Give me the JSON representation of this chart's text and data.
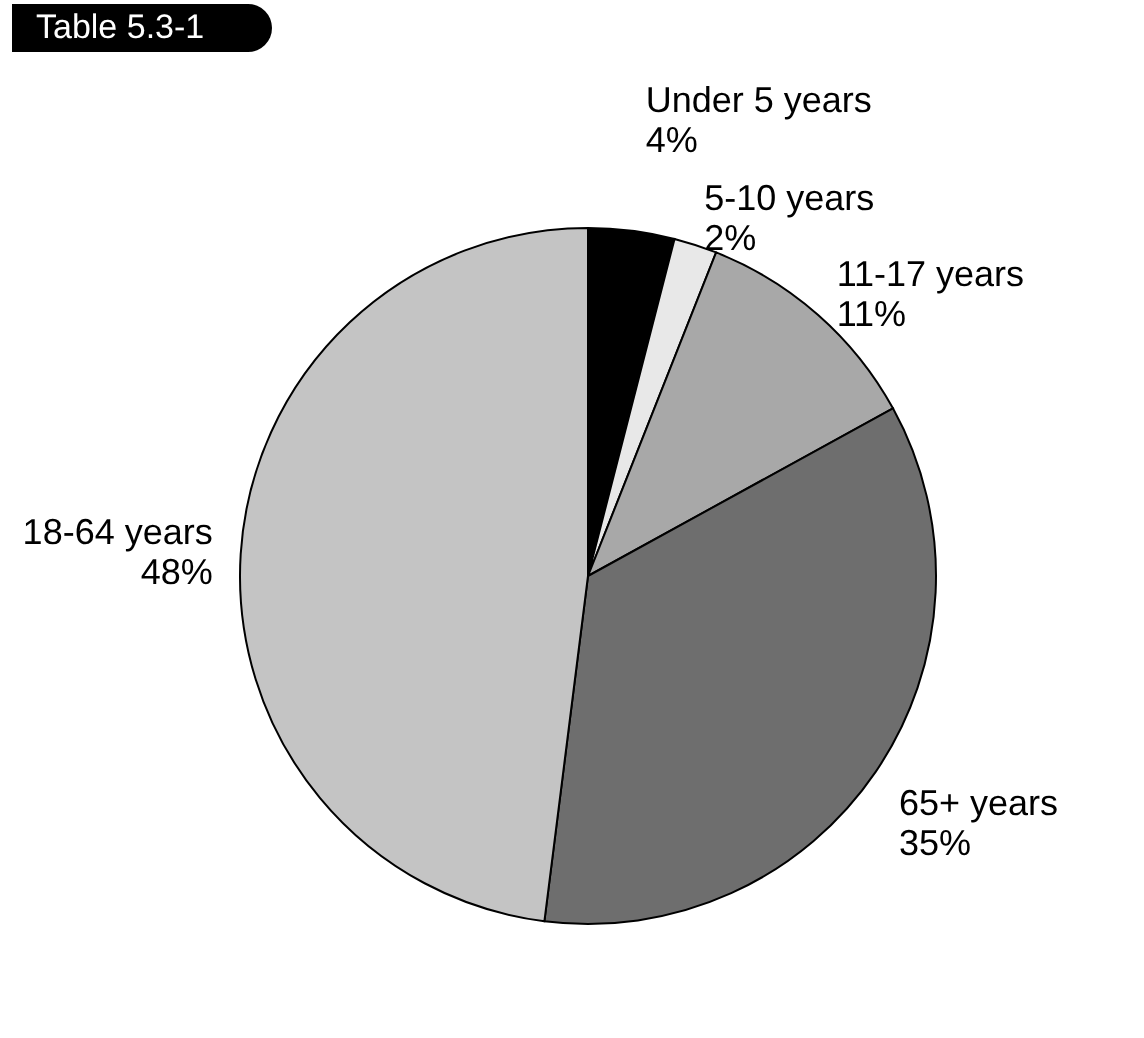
{
  "chart_data": {
    "type": "pie",
    "title": "Table 5.3-1",
    "categories": [
      "Under 5 years",
      "5-10 years",
      "11-17 years",
      "65+ years",
      "18-64 years"
    ],
    "values": [
      4,
      2,
      11,
      35,
      48
    ],
    "value_labels": [
      "4%",
      "2%",
      "11%",
      "35%",
      "48%"
    ],
    "colors": [
      "#000000",
      "#e8e8e8",
      "#a8a8a8",
      "#6e6e6e",
      "#c4c4c4"
    ]
  }
}
